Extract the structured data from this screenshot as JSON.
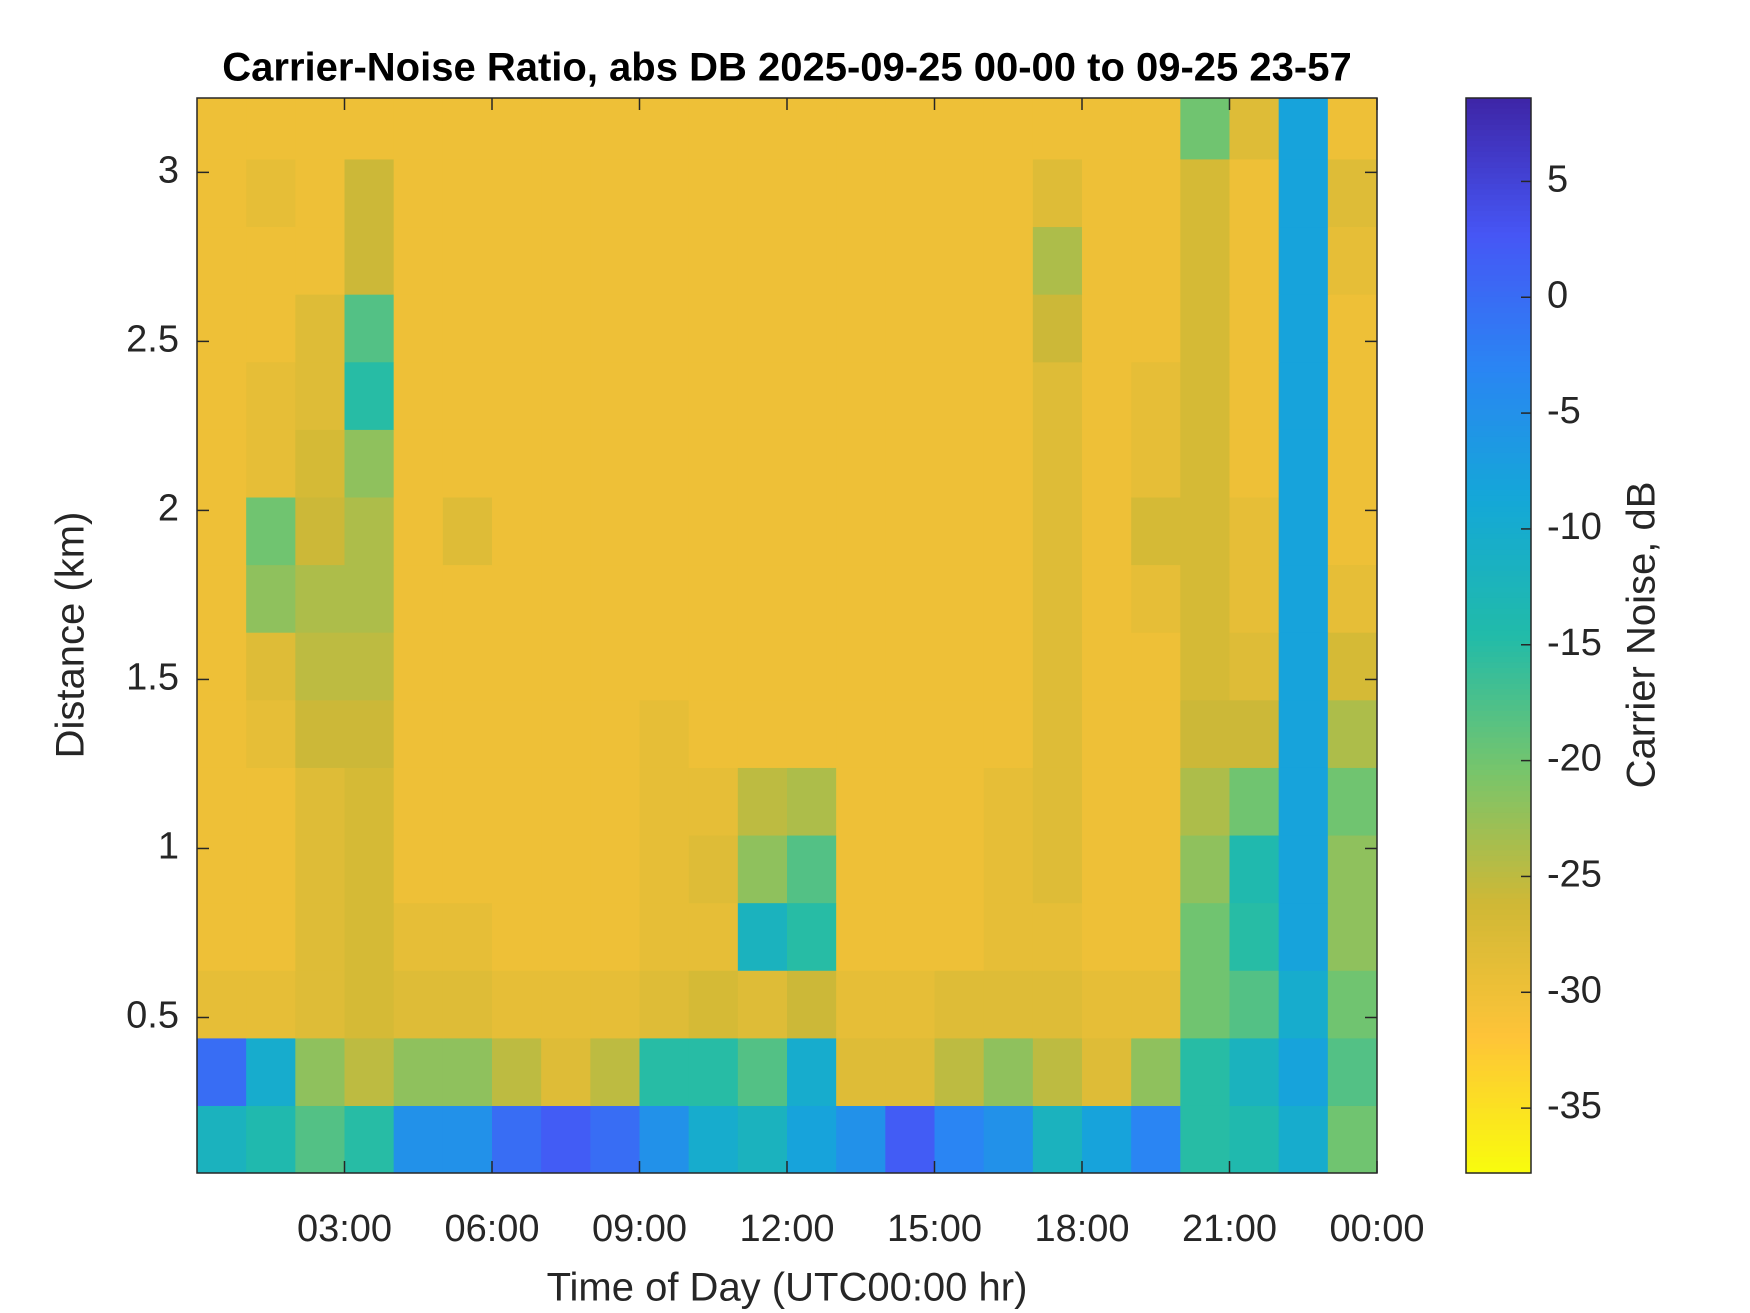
{
  "chart_data": {
    "type": "heatmap",
    "title": "Carrier-Noise Ratio, abs DB 2025-09-25 00-00 to 09-25 23-57",
    "xlabel": "Time of Day (UTC00:00 hr)",
    "ylabel": "Distance (km)",
    "colorbar_label": "Carrier Noise, dB",
    "colormap": "parula",
    "x": [
      0.5,
      1.5,
      2.5,
      3.5,
      4.5,
      5.5,
      6.5,
      7.5,
      8.5,
      9.5,
      10.5,
      11.5,
      12.5,
      13.5,
      14.5,
      15.5,
      16.5,
      17.5,
      18.5,
      19.5,
      20.5,
      21.5,
      22.5,
      23.5
    ],
    "y": [
      0.14,
      0.34,
      0.54,
      0.74,
      0.94,
      1.14,
      1.34,
      1.54,
      1.74,
      1.94,
      2.14,
      2.34,
      2.54,
      2.74,
      2.94,
      3.14
    ],
    "z": [
      [
        -12,
        -14,
        -18,
        -15,
        -5,
        -5,
        0,
        2,
        0,
        -5,
        -10,
        -12,
        -8,
        -5,
        2,
        -3,
        -5,
        -12,
        -8,
        -3,
        -15,
        -14,
        -10,
        -20
      ],
      [
        0,
        -10,
        -22,
        -25,
        -22,
        -22,
        -25,
        -28,
        -25,
        -15,
        -15,
        -18,
        -10,
        -28,
        -28,
        -25,
        -22,
        -25,
        -28,
        -22,
        -15,
        -12,
        -8,
        -18
      ],
      [
        -29,
        -29,
        -28,
        -27,
        -28,
        -28,
        -29,
        -29,
        -29,
        -28,
        -27,
        -28,
        -26,
        -29,
        -29,
        -28,
        -28,
        -28,
        -29,
        -29,
        -20,
        -18,
        -10,
        -20
      ],
      [
        -30,
        -30,
        -28,
        -27,
        -29,
        -29,
        -30,
        -30,
        -30,
        -29,
        -29,
        -12,
        -15,
        -30,
        -30,
        -30,
        -29,
        -29,
        -30,
        -30,
        -20,
        -15,
        -8,
        -22
      ],
      [
        -30,
        -30,
        -28,
        -27,
        -30,
        -30,
        -30,
        -30,
        -30,
        -29,
        -28,
        -22,
        -18,
        -30,
        -30,
        -30,
        -29,
        -28,
        -30,
        -30,
        -22,
        -14,
        -8,
        -22
      ],
      [
        -30,
        -30,
        -28,
        -27,
        -30,
        -30,
        -30,
        -30,
        -30,
        -29,
        -29,
        -25,
        -24,
        -30,
        -30,
        -30,
        -29,
        -28,
        -30,
        -30,
        -24,
        -20,
        -8,
        -20
      ],
      [
        -30,
        -29,
        -26,
        -26,
        -30,
        -30,
        -30,
        -30,
        -30,
        -29,
        -30,
        -30,
        -30,
        -30,
        -30,
        -30,
        -30,
        -28,
        -30,
        -30,
        -26,
        -26,
        -8,
        -24
      ],
      [
        -30,
        -28,
        -25,
        -25,
        -30,
        -30,
        -30,
        -30,
        -30,
        -30,
        -30,
        -30,
        -30,
        -30,
        -30,
        -30,
        -30,
        -28,
        -30,
        -30,
        -27,
        -28,
        -8,
        -27
      ],
      [
        -30,
        -22,
        -24,
        -24,
        -30,
        -30,
        -30,
        -30,
        -30,
        -30,
        -30,
        -30,
        -30,
        -30,
        -30,
        -30,
        -30,
        -28,
        -30,
        -29,
        -27,
        -29,
        -8,
        -29
      ],
      [
        -30,
        -20,
        -26,
        -24,
        -30,
        -28,
        -30,
        -30,
        -30,
        -30,
        -30,
        -30,
        -30,
        -30,
        -30,
        -30,
        -30,
        -28,
        -30,
        -27,
        -27,
        -29,
        -8,
        -30
      ],
      [
        -30,
        -29,
        -27,
        -22,
        -30,
        -30,
        -30,
        -30,
        -30,
        -30,
        -30,
        -30,
        -30,
        -30,
        -30,
        -30,
        -30,
        -28,
        -30,
        -29,
        -27,
        -30,
        -8,
        -30
      ],
      [
        -30,
        -29,
        -28,
        -15,
        -30,
        -30,
        -30,
        -30,
        -30,
        -30,
        -30,
        -30,
        -30,
        -30,
        -30,
        -30,
        -30,
        -28,
        -30,
        -29,
        -27,
        -30,
        -8,
        -30
      ],
      [
        -30,
        -30,
        -28,
        -18,
        -30,
        -30,
        -30,
        -30,
        -30,
        -30,
        -30,
        -30,
        -30,
        -30,
        -30,
        -30,
        -30,
        -26,
        -30,
        -30,
        -27,
        -30,
        -8,
        -30
      ],
      [
        -30,
        -30,
        -30,
        -26,
        -30,
        -30,
        -30,
        -30,
        -30,
        -30,
        -30,
        -30,
        -30,
        -30,
        -30,
        -30,
        -30,
        -24,
        -30,
        -30,
        -27,
        -30,
        -8,
        -29
      ],
      [
        -30,
        -29,
        -30,
        -26,
        -30,
        -30,
        -30,
        -30,
        -30,
        -30,
        -30,
        -30,
        -30,
        -30,
        -30,
        -30,
        -30,
        -28,
        -30,
        -30,
        -27,
        -30,
        -8,
        -28
      ],
      [
        -30,
        -30,
        -30,
        -30,
        -30,
        -30,
        -30,
        -30,
        -30,
        -30,
        -30,
        -30,
        -30,
        -30,
        -30,
        -30,
        -30,
        -30,
        -30,
        -30,
        -20,
        -28,
        -8,
        -30
      ]
    ],
    "xlim": [
      0,
      24
    ],
    "xticks": [
      {
        "value": 3,
        "label": "03:00"
      },
      {
        "value": 6,
        "label": "06:00"
      },
      {
        "value": 9,
        "label": "09:00"
      },
      {
        "value": 12,
        "label": "12:00"
      },
      {
        "value": 15,
        "label": "15:00"
      },
      {
        "value": 18,
        "label": "18:00"
      },
      {
        "value": 21,
        "label": "21:00"
      },
      {
        "value": 24,
        "label": "00:00"
      }
    ],
    "ylim": [
      0.04,
      3.22
    ],
    "yticks": [
      0.5,
      1,
      1.5,
      2,
      2.5,
      3
    ],
    "clim": [
      -37.8,
      8.6
    ],
    "cticks": [
      -35,
      -30,
      -25,
      -20,
      -15,
      -10,
      -5,
      0,
      5
    ]
  }
}
